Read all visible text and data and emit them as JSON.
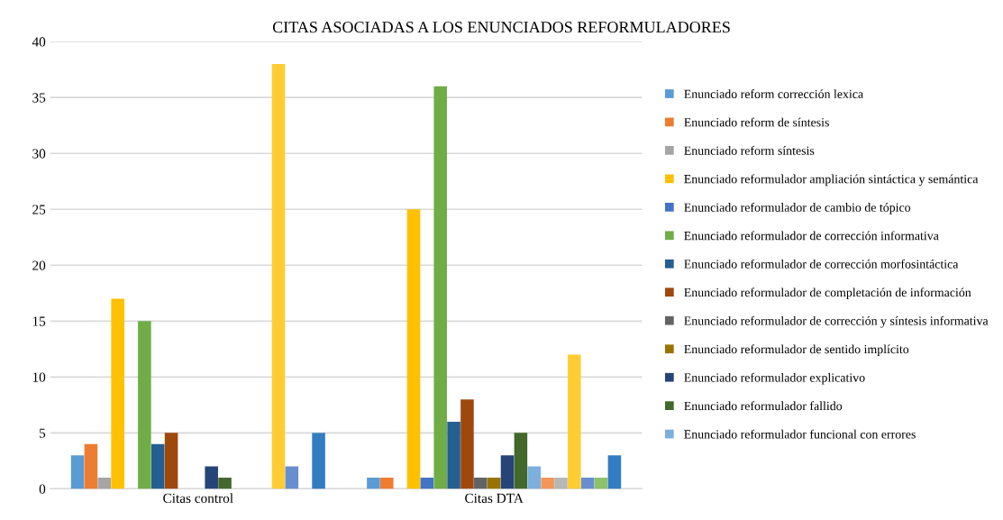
{
  "chart_data": {
    "type": "bar",
    "title": "CITAS ASOCIADAS A LOS ENUNCIADOS REFORMULADORES",
    "categories": [
      "Citas control",
      "Citas DTA"
    ],
    "series": [
      {
        "name": "Enunciado reform corrección lexica",
        "color": "#5b9bd5",
        "values": [
          3,
          1
        ]
      },
      {
        "name": "Enunciado reform de síntesis",
        "color": "#ed7d31",
        "values": [
          4,
          1
        ]
      },
      {
        "name": "Enunciado reform síntesis",
        "color": "#a5a5a5",
        "values": [
          1,
          0
        ]
      },
      {
        "name": "Enunciado reformulador ampliación sintáctica y semántica",
        "color": "#ffc000",
        "values": [
          17,
          25
        ]
      },
      {
        "name": "Enunciado reformulador de cambio de tópico",
        "color": "#4472c4",
        "values": [
          0,
          1
        ]
      },
      {
        "name": "Enunciado reformulador de corrección informativa",
        "color": "#70ad47",
        "values": [
          15,
          36
        ]
      },
      {
        "name": "Enunciado reformulador de corrección morfosintáctica",
        "color": "#255e91",
        "values": [
          4,
          6
        ]
      },
      {
        "name": "Enunciado reformulador de completación de información",
        "color": "#9e480e",
        "values": [
          5,
          8
        ]
      },
      {
        "name": "Enunciado reformulador de corrección y síntesis informativa",
        "color": "#636363",
        "values": [
          0,
          1
        ]
      },
      {
        "name": "Enunciado reformulador de sentido implícito",
        "color": "#997300",
        "values": [
          0,
          1
        ]
      },
      {
        "name": "Enunciado reformulador explicativo",
        "color": "#264478",
        "values": [
          2,
          3
        ]
      },
      {
        "name": "Enunciado reformulador fallido",
        "color": "#43682b",
        "values": [
          1,
          5
        ]
      },
      {
        "name": "Enunciado reformulador funcional con errores",
        "color": "#7cafdd",
        "values": [
          0,
          2
        ]
      },
      {
        "color": "#f1975a",
        "values": [
          0,
          1
        ]
      },
      {
        "color": "#b7b7b7",
        "values": [
          0,
          1
        ]
      },
      {
        "color": "#ffcd33",
        "values": [
          38,
          12
        ]
      },
      {
        "color": "#698ed0",
        "values": [
          2,
          1
        ]
      },
      {
        "color": "#8cc168",
        "values": [
          0,
          1
        ]
      },
      {
        "color": "#327dc2",
        "values": [
          5,
          3
        ]
      }
    ],
    "ylim": [
      0,
      40
    ],
    "yticks": [
      0,
      5,
      10,
      15,
      20,
      25,
      30,
      35,
      40
    ],
    "grid": "y",
    "legend": "right"
  }
}
